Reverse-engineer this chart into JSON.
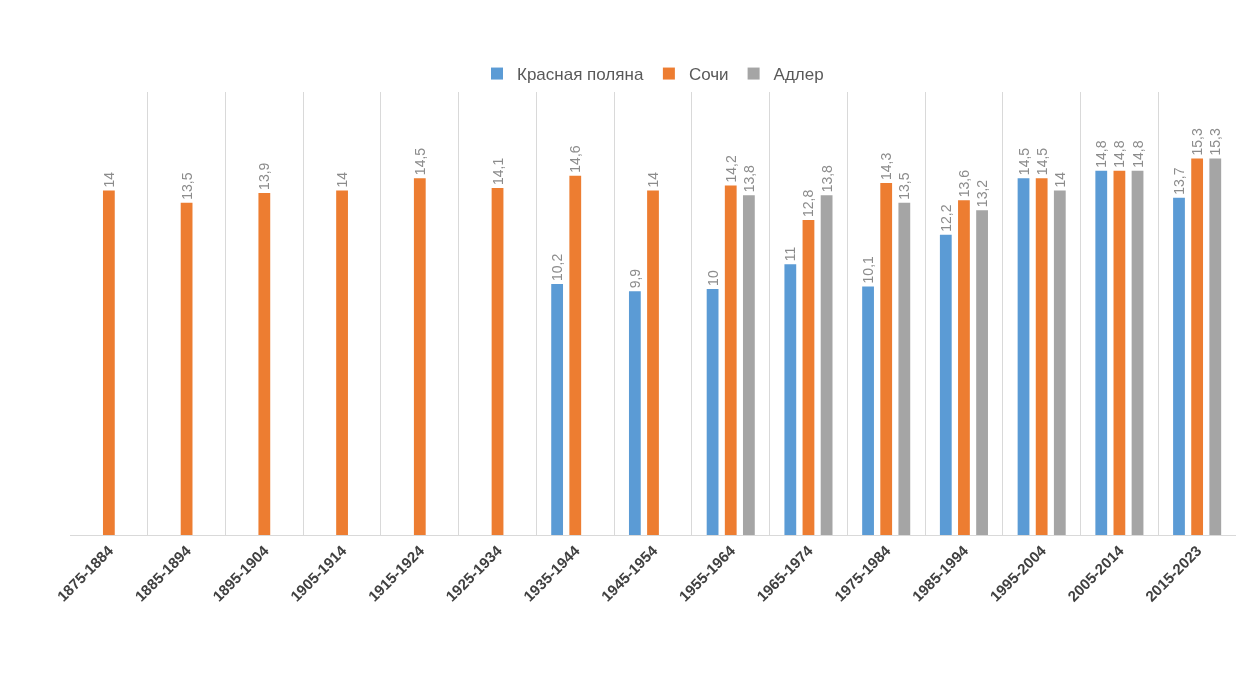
{
  "chart_data": {
    "type": "bar",
    "categories": [
      "1875-1884",
      "1885-1894",
      "1895-1904",
      "1905-1914",
      "1915-1924",
      "1925-1934",
      "1935-1944",
      "1945-1954",
      "1955-1964",
      "1965-1974",
      "1975-1984",
      "1985-1994",
      "1995-2004",
      "2005-2014",
      "2015-2023"
    ],
    "series": [
      {
        "name": "Красная поляна",
        "color": "#5b9bd5",
        "values": [
          null,
          null,
          null,
          null,
          null,
          null,
          10.2,
          9.9,
          10,
          11,
          10.1,
          12.2,
          14.5,
          14.8,
          13.7
        ],
        "value_labels": [
          null,
          null,
          null,
          null,
          null,
          null,
          "10,2",
          "9,9",
          "10",
          "11",
          "10,1",
          "12,2",
          "14,5",
          "14,8",
          "13,7"
        ]
      },
      {
        "name": "Сочи",
        "color": "#ed7d31",
        "values": [
          14,
          13.5,
          13.9,
          14,
          14.5,
          14.1,
          14.6,
          14,
          14.2,
          12.8,
          14.3,
          13.6,
          14.5,
          14.8,
          15.3
        ],
        "value_labels": [
          "14",
          "13,5",
          "13,9",
          "14",
          "14,5",
          "14,1",
          "14,6",
          "14",
          "14,2",
          "12,8",
          "14,3",
          "13,6",
          "14,5",
          "14,8",
          "15,3"
        ]
      },
      {
        "name": "Адлер",
        "color": "#a5a5a5",
        "values": [
          null,
          null,
          null,
          null,
          null,
          null,
          null,
          null,
          13.8,
          13.8,
          13.5,
          13.2,
          14,
          14.8,
          15.3
        ],
        "value_labels": [
          null,
          null,
          null,
          null,
          null,
          null,
          null,
          null,
          "13,8",
          "13,8",
          "13,5",
          "13,2",
          "14",
          "14,8",
          "15,3"
        ]
      }
    ],
    "ylim": [
      0,
      18
    ],
    "grid": "x",
    "legend": "top",
    "tick_labels": "x"
  }
}
